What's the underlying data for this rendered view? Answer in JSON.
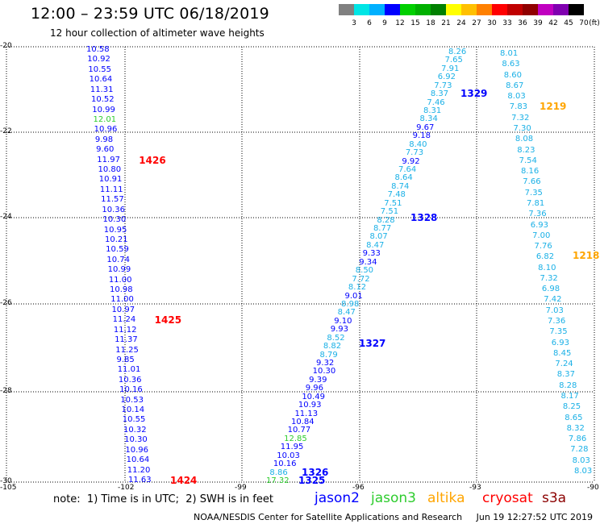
{
  "header": {
    "title": "12:00 – 23:59 UTC 06/18/2019",
    "subtitle": "12 hour collection of altimeter wave heights"
  },
  "colorbar": {
    "unit": "(ft)",
    "colors": [
      "#808080",
      "#00e5e5",
      "#00b0ff",
      "#0000ff",
      "#00d000",
      "#00b000",
      "#008000",
      "#ffff00",
      "#ffc000",
      "#ff8000",
      "#ff0000",
      "#c00000",
      "#900000",
      "#c000c0",
      "#8000b0",
      "#000000"
    ],
    "labels": [
      "3",
      "6",
      "9",
      "12",
      "15",
      "18",
      "21",
      "24",
      "27",
      "30",
      "33",
      "36",
      "39",
      "42",
      "45",
      "70"
    ]
  },
  "axes": {
    "lon_labels": [
      "-105",
      "-102",
      "-99",
      "-96",
      "-93",
      "-90"
    ],
    "lat_labels": [
      "-20",
      "-22",
      "-24",
      "-26",
      "-28",
      "-30"
    ]
  },
  "tracks": {
    "colors": {
      "jason2": "#0000ff",
      "jason3": "#2ecc2e",
      "altika": "#ffa500",
      "cryosat": "#ff0000",
      "s3a": "#8b0000",
      "cyan": "#1ab0e6"
    },
    "track_a": {
      "values": [
        "10.58",
        "10.92",
        "10.55",
        "10.64",
        "11.31",
        "10.52",
        "10.99",
        "12.01",
        "10.96",
        "9.98",
        "9.60",
        "11.97",
        "10.80",
        "10.91",
        "11.11",
        "11.57",
        "10.36",
        "10.30",
        "10.95",
        "10.21",
        "10.59",
        "10.74",
        "10.99",
        "11.00",
        "10.98",
        "11.00",
        "10.97",
        "11.24",
        "11.12",
        "11.37",
        "11.25",
        "9.85",
        "11.01",
        "10.36",
        "10.16",
        "10.53",
        "10.14",
        "10.55",
        "10.32",
        "10.30",
        "10.96",
        "10.64",
        "11.20",
        "11.63"
      ],
      "colors": [
        "b",
        "b",
        "b",
        "b",
        "b",
        "b",
        "b",
        "g",
        "b",
        "b",
        "b",
        "b",
        "b",
        "b",
        "b",
        "b",
        "b",
        "b",
        "b",
        "b",
        "b",
        "b",
        "b",
        "b",
        "b",
        "b",
        "b",
        "b",
        "b",
        "b",
        "b",
        "b",
        "b",
        "b",
        "b",
        "b",
        "b",
        "b",
        "b",
        "b",
        "b",
        "b",
        "b",
        "b"
      ],
      "passes": [
        {
          "label": "1426",
          "row": 11
        },
        {
          "label": "1425",
          "row": 27
        },
        {
          "label": "1424",
          "row": 43
        }
      ]
    },
    "track_b": {
      "values": [
        "8.26",
        "7.65",
        "7.91",
        "6.92",
        "7.73",
        "8.37",
        "7.46",
        "8.31",
        "8.34",
        "9.67",
        "9.18",
        "8.40",
        "7.73",
        "9.92",
        "7.64",
        "8.64",
        "8.74",
        "7.48",
        "7.51",
        "7.51",
        "8.28",
        "8.77",
        "8.07",
        "8.47",
        "9.33",
        "9.34",
        "8.50",
        "7.72",
        "8.12",
        "9.01",
        "8.98",
        "8.47",
        "9.10",
        "9.93",
        "8.52",
        "8.82",
        "8.79",
        "9.32",
        "10.30",
        "9.39",
        "9.96",
        "10.49",
        "10.93",
        "11.13",
        "10.84",
        "10.77",
        "12.85",
        "11.95",
        "10.03",
        "10.16",
        "8.86",
        "17.32"
      ],
      "colors": [
        "c",
        "c",
        "c",
        "c",
        "c",
        "c",
        "c",
        "c",
        "c",
        "b",
        "b",
        "c",
        "c",
        "b",
        "c",
        "c",
        "c",
        "c",
        "c",
        "c",
        "c",
        "c",
        "c",
        "c",
        "b",
        "b",
        "c",
        "c",
        "c",
        "b",
        "c",
        "c",
        "b",
        "b",
        "c",
        "c",
        "c",
        "b",
        "b",
        "b",
        "b",
        "b",
        "b",
        "b",
        "b",
        "b",
        "g",
        "b",
        "b",
        "b",
        "c",
        "g"
      ],
      "passes": [
        {
          "label": "1329",
          "row": 5
        },
        {
          "label": "1328",
          "row": 20
        },
        {
          "label": "1327",
          "row": 35
        },
        {
          "label": "1326",
          "row": 50
        },
        {
          "label": "1325",
          "row": 51
        }
      ]
    },
    "track_c": {
      "values": [
        "8.01",
        "8.63",
        "8.60",
        "8.67",
        "8.03",
        "7.83",
        "7.32",
        "7.30",
        "8.08",
        "8.23",
        "7.54",
        "8.16",
        "7.66",
        "7.35",
        "7.81",
        "7.36",
        "6.93",
        "7.00",
        "7.76",
        "6.82",
        "8.10",
        "7.32",
        "6.98",
        "7.42",
        "7.03",
        "7.36",
        "7.35",
        "6.93",
        "8.45",
        "7.24",
        "8.37",
        "8.28",
        "8.17",
        "8.25",
        "8.65",
        "8.32",
        "7.86",
        "7.28",
        "8.03",
        "8.03"
      ],
      "colors": [
        "c",
        "c",
        "c",
        "c",
        "c",
        "c",
        "c",
        "c",
        "c",
        "c",
        "c",
        "c",
        "c",
        "c",
        "c",
        "c",
        "c",
        "c",
        "c",
        "c",
        "c",
        "c",
        "c",
        "c",
        "c",
        "c",
        "c",
        "c",
        "c",
        "c",
        "c",
        "c",
        "c",
        "c",
        "c",
        "c",
        "c",
        "c",
        "c",
        "c"
      ],
      "passes": [
        {
          "label": "1219",
          "row": 5
        },
        {
          "label": "1218",
          "row": 19
        }
      ]
    }
  },
  "footer": {
    "note": "note:  1) Time is in UTC;  2) SWH is in feet",
    "legend": [
      {
        "label": "jason2",
        "color": "#0000ff"
      },
      {
        "label": "jason3",
        "color": "#2ecc2e"
      },
      {
        "label": "altika",
        "color": "#ffa500"
      },
      {
        "label": "cryosat",
        "color": "#ff0000"
      },
      {
        "label": "s3a",
        "color": "#8b0000"
      }
    ],
    "credit": "NOAA/NESDIS Center for Satellite Applications and Research     Jun 19 12:27:52 UTC 2019"
  }
}
